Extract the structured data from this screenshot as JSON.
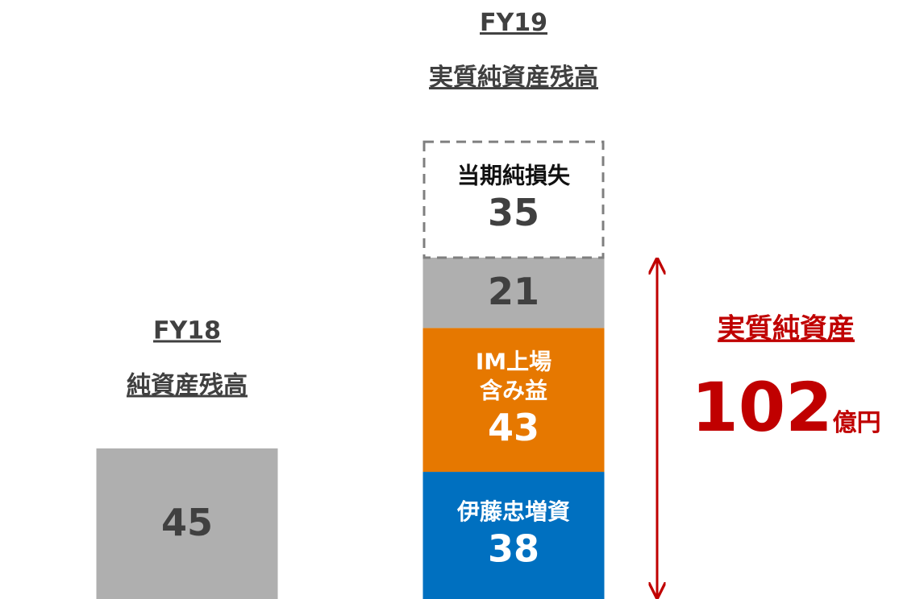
{
  "chart_data": {
    "type": "stacked_bar",
    "ylim": [
      0,
      179
    ],
    "bars": [
      {
        "category": "FY18",
        "subtitle": "純資産残高",
        "segments": [
          {
            "value": 45,
            "color": "#afafaf",
            "text_color": "#404040"
          }
        ]
      },
      {
        "category": "FY19",
        "subtitle": "実質純資産残高",
        "segments": [
          {
            "label": [
              "伊藤忠増資"
            ],
            "value": 38,
            "color": "#0070c0",
            "text_color": "#ffffff"
          },
          {
            "label": [
              "IM上場",
              "含み益"
            ],
            "value": 43,
            "color": "#e67800",
            "text_color": "#ffffff"
          },
          {
            "value": 21,
            "color": "#afafaf",
            "text_color": "#404040"
          },
          {
            "label": [
              "当期純損失"
            ],
            "value": 35,
            "color": "none",
            "style": "dashed",
            "text_color": "#404040"
          }
        ]
      }
    ],
    "annotation": {
      "label": "実質純資産",
      "value": 102,
      "unit": "億円",
      "color": "#c00000"
    }
  }
}
